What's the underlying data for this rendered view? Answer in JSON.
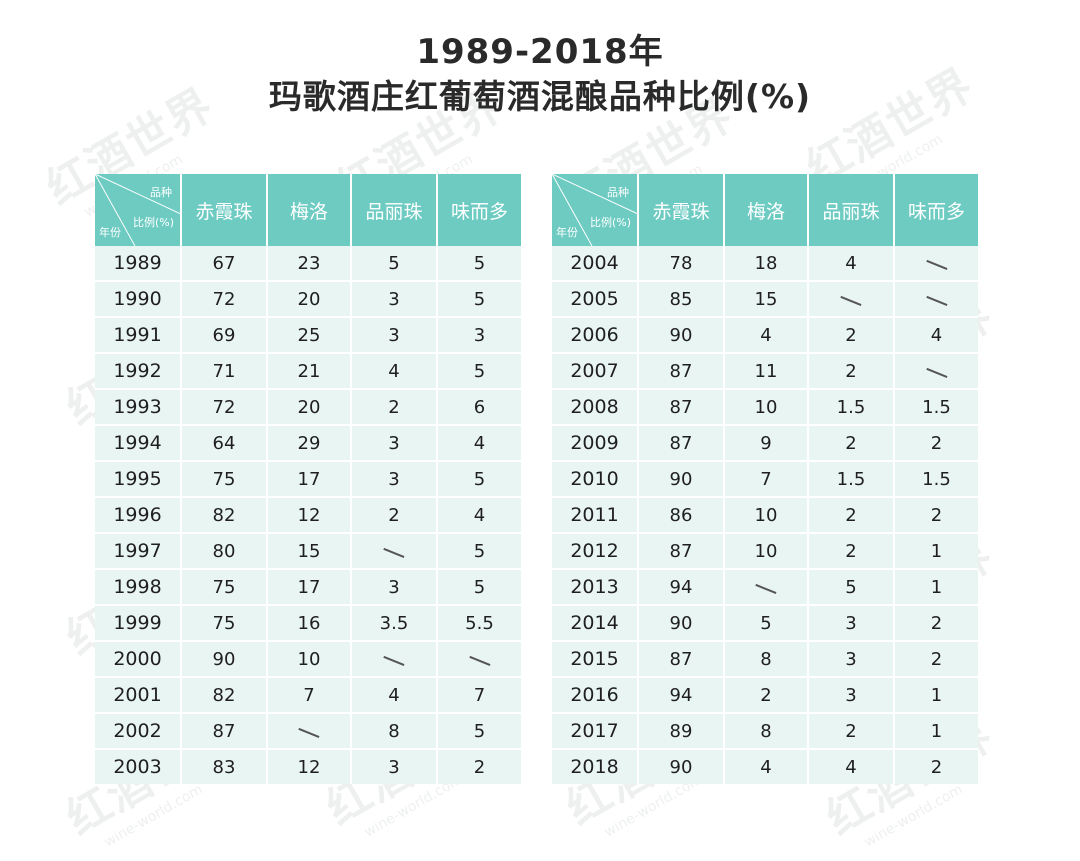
{
  "title_line1": "1989-2018年",
  "title_line2": "玛歌酒庄红葡萄酒混酿品种比例(%)",
  "header": {
    "corner_variety": "品种",
    "corner_ratio": "比例(%)",
    "corner_year": "年份",
    "columns": [
      "赤霞珠",
      "梅洛",
      "品丽珠",
      "味而多"
    ]
  },
  "watermark": {
    "cn": "红酒世界",
    "en": "wine-world.com"
  },
  "chart_data": {
    "type": "table",
    "title": "1989-2018年 玛歌酒庄红葡萄酒混酿品种比例(%)",
    "columns": [
      "年份",
      "赤霞珠",
      "梅洛",
      "品丽珠",
      "味而多"
    ],
    "dash_symbol": "—",
    "left_rows": [
      [
        "1989",
        "67",
        "23",
        "5",
        "5"
      ],
      [
        "1990",
        "72",
        "20",
        "3",
        "5"
      ],
      [
        "1991",
        "69",
        "25",
        "3",
        "3"
      ],
      [
        "1992",
        "71",
        "21",
        "4",
        "5"
      ],
      [
        "1993",
        "72",
        "20",
        "2",
        "6"
      ],
      [
        "1994",
        "64",
        "29",
        "3",
        "4"
      ],
      [
        "1995",
        "75",
        "17",
        "3",
        "5"
      ],
      [
        "1996",
        "82",
        "12",
        "2",
        "4"
      ],
      [
        "1997",
        "80",
        "15",
        "—",
        "5"
      ],
      [
        "1998",
        "75",
        "17",
        "3",
        "5"
      ],
      [
        "1999",
        "75",
        "16",
        "3.5",
        "5.5"
      ],
      [
        "2000",
        "90",
        "10",
        "—",
        "—"
      ],
      [
        "2001",
        "82",
        "7",
        "4",
        "7"
      ],
      [
        "2002",
        "87",
        "—",
        "8",
        "5"
      ],
      [
        "2003",
        "83",
        "12",
        "3",
        "2"
      ]
    ],
    "right_rows": [
      [
        "2004",
        "78",
        "18",
        "4",
        "—"
      ],
      [
        "2005",
        "85",
        "15",
        "—",
        "—"
      ],
      [
        "2006",
        "90",
        "4",
        "2",
        "4"
      ],
      [
        "2007",
        "87",
        "11",
        "2",
        "—"
      ],
      [
        "2008",
        "87",
        "10",
        "1.5",
        "1.5"
      ],
      [
        "2009",
        "87",
        "9",
        "2",
        "2"
      ],
      [
        "2010",
        "90",
        "7",
        "1.5",
        "1.5"
      ],
      [
        "2011",
        "86",
        "10",
        "2",
        "2"
      ],
      [
        "2012",
        "87",
        "10",
        "2",
        "1"
      ],
      [
        "2013",
        "94",
        "—",
        "5",
        "1"
      ],
      [
        "2014",
        "90",
        "5",
        "3",
        "2"
      ],
      [
        "2015",
        "87",
        "8",
        "3",
        "2"
      ],
      [
        "2016",
        "94",
        "2",
        "3",
        "1"
      ],
      [
        "2017",
        "89",
        "8",
        "2",
        "1"
      ],
      [
        "2018",
        "90",
        "4",
        "4",
        "2"
      ]
    ]
  }
}
